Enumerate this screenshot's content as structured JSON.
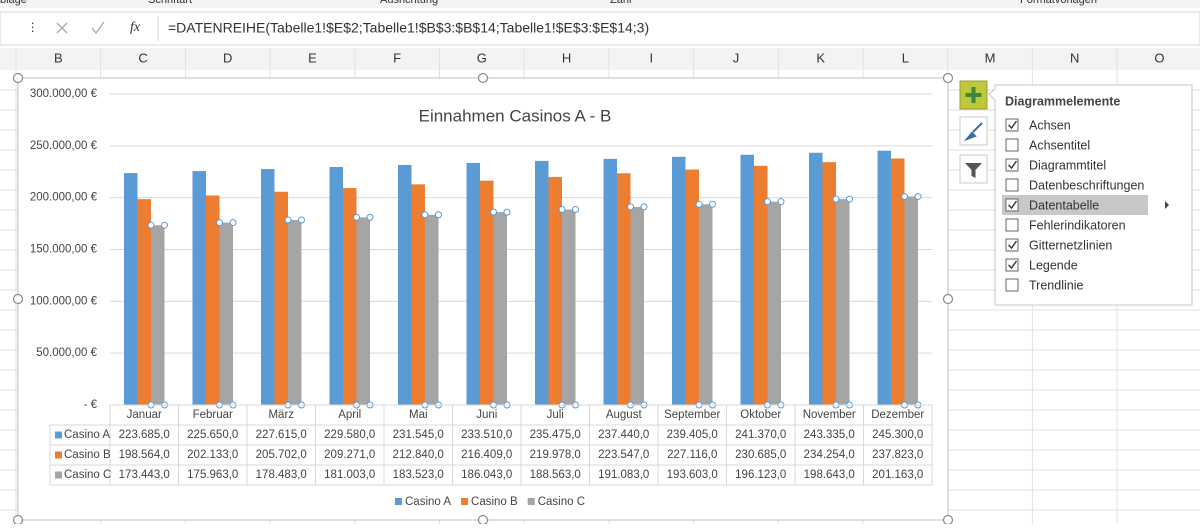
{
  "ribbon_groups": [
    "blage",
    "Schriftart",
    "Ausrichtung",
    "Zahl",
    "Formatvorlagen"
  ],
  "formula_bar": {
    "icon": "fx",
    "formula": "=DATENREIHE(Tabelle1!$E$2;Tabelle1!$B$3:$B$14;Tabelle1!$E$3:$E$14;3)"
  },
  "columns": [
    "B",
    "C",
    "D",
    "E",
    "F",
    "G",
    "H",
    "I",
    "J",
    "K",
    "L",
    "M",
    "N",
    "O"
  ],
  "chart_data": {
    "type": "bar",
    "title": "Einnahmen Casinos A - B",
    "categories": [
      "Januar",
      "Februar",
      "März",
      "April",
      "Mai",
      "Juni",
      "Juli",
      "August",
      "September",
      "Oktober",
      "November",
      "Dezember"
    ],
    "series": [
      {
        "name": "Casino A",
        "color": "#5b9bd5",
        "values": [
          223685,
          225650,
          227615,
          229580,
          231545,
          233510,
          235475,
          237440,
          239405,
          241370,
          243335,
          245300
        ],
        "value_labels": [
          "223.685,0",
          "225.650,0",
          "227.615,0",
          "229.580,0",
          "231.545,0",
          "233.510,0",
          "235.475,0",
          "237.440,0",
          "239.405,0",
          "241.370,0",
          "243.335,0",
          "245.300,0"
        ]
      },
      {
        "name": "Casino B",
        "color": "#ed7d31",
        "values": [
          198564,
          202133,
          205702,
          209271,
          212840,
          216409,
          219978,
          223547,
          227116,
          230685,
          234254,
          237823
        ],
        "value_labels": [
          "198.564,0",
          "202.133,0",
          "205.702,0",
          "209.271,0",
          "212.840,0",
          "216.409,0",
          "219.978,0",
          "223.547,0",
          "227.116,0",
          "230.685,0",
          "234.254,0",
          "237.823,0"
        ]
      },
      {
        "name": "Casino C",
        "color": "#a5a5a5",
        "values": [
          173443,
          175963,
          178483,
          181003,
          183523,
          186043,
          188563,
          191083,
          193603,
          196123,
          198643,
          201163
        ],
        "value_labels": [
          "173.443,0",
          "175.963,0",
          "178.483,0",
          "181.003,0",
          "183.523,0",
          "186.043,0",
          "188.563,0",
          "191.083,0",
          "193.603,0",
          "196.123,0",
          "198.643,0",
          "201.163,0"
        ]
      }
    ],
    "ylim": [
      0,
      300000
    ],
    "yticks": [
      {
        "value": 0,
        "label": "-   €"
      },
      {
        "value": 50000,
        "label": "50.000,00 €"
      },
      {
        "value": 100000,
        "label": "100.000,00 €"
      },
      {
        "value": 150000,
        "label": "150.000,00 €"
      },
      {
        "value": 200000,
        "label": "200.000,00 €"
      },
      {
        "value": 250000,
        "label": "250.000,00 €"
      },
      {
        "value": 300000,
        "label": "300.000,00 €"
      }
    ],
    "grid": true,
    "legend": "bottom"
  },
  "panel": {
    "title": "Diagrammelemente",
    "items": [
      {
        "label": "Achsen",
        "checked": true
      },
      {
        "label": "Achsentitel",
        "checked": false
      },
      {
        "label": "Diagrammtitel",
        "checked": true
      },
      {
        "label": "Datenbeschriftungen",
        "checked": false
      },
      {
        "label": "Datentabelle",
        "checked": true,
        "selected": true
      },
      {
        "label": "Fehlerindikatoren",
        "checked": false
      },
      {
        "label": "Gitternetzlinien",
        "checked": true
      },
      {
        "label": "Legende",
        "checked": true
      },
      {
        "label": "Trendlinie",
        "checked": false
      }
    ]
  }
}
